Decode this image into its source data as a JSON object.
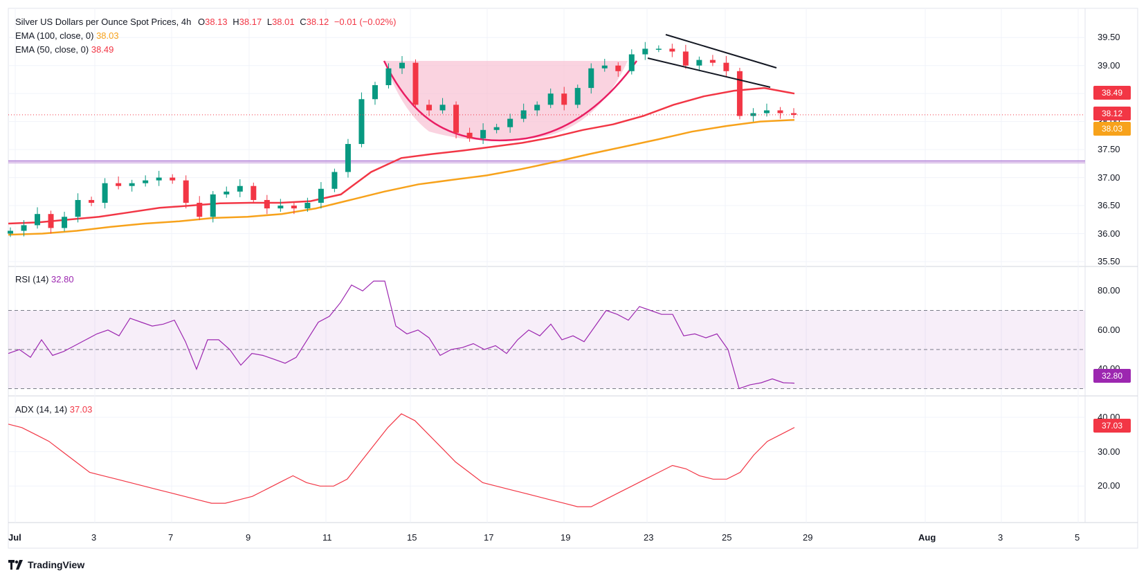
{
  "title": "Silver US Dollars per Ounce Spot Prices",
  "timeframe": "4h",
  "ohlc": {
    "o_label": "O",
    "o": "38.13",
    "h_label": "H",
    "h": "38.17",
    "l_label": "L",
    "l": "38.01",
    "c_label": "C",
    "c": "38.12",
    "change": "−0.01 (−0.02%)"
  },
  "indicators": {
    "ema100": {
      "label": "EMA (100, close, 0)",
      "value": "38.03",
      "color": "#f7a21b"
    },
    "ema50": {
      "label": "EMA (50, close, 0)",
      "value": "38.49",
      "color": "#f23645"
    },
    "rsi": {
      "label": "RSI (14)",
      "value": "32.80",
      "color": "#9c27b0"
    },
    "adx": {
      "label": "ADX (14, 14)",
      "value": "37.03",
      "color": "#f23645"
    }
  },
  "price_tags": {
    "ema50": "38.49",
    "last": "38.12",
    "ema100": "38.03",
    "rsi": "32.80",
    "adx": "37.03"
  },
  "brand": "TradingView",
  "chart_data": [
    {
      "type": "candlestick",
      "title": "Silver US Dollars per Ounce Spot Prices, 4h",
      "ylim": [
        35.5,
        39.75
      ],
      "yticks": [
        "39.50",
        "39.00",
        "38.50",
        "38.00",
        "37.50",
        "37.00",
        "36.50",
        "36.00",
        "35.50"
      ],
      "xticks": [
        "Jul",
        "3",
        "7",
        "9",
        "11",
        "15",
        "17",
        "19",
        "23",
        "25",
        "29",
        "Aug",
        "3",
        "5"
      ],
      "xtick_positions": [
        0,
        2,
        4,
        6,
        8,
        10,
        12,
        14,
        16,
        18,
        20,
        22,
        24,
        26
      ],
      "candles_approx_close": [
        36.05,
        36.15,
        36.35,
        36.1,
        36.3,
        36.6,
        36.55,
        36.9,
        36.85,
        36.9,
        36.95,
        37.0,
        36.95,
        36.55,
        36.3,
        36.7,
        36.75,
        36.85,
        36.6,
        36.45,
        36.5,
        36.45,
        36.55,
        36.8,
        37.1,
        37.6,
        38.4,
        38.65,
        38.95,
        39.05,
        38.3,
        38.2,
        38.3,
        37.8,
        37.7,
        37.85,
        37.9,
        38.05,
        38.2,
        38.3,
        38.5,
        38.3,
        38.6,
        38.95,
        39.0,
        38.9,
        39.2,
        39.3,
        39.3,
        39.25,
        39.0,
        39.1,
        39.05,
        38.9,
        38.1,
        38.15,
        38.2,
        38.15,
        38.12
      ],
      "series": [
        {
          "name": "EMA (50, close, 0)",
          "color": "#f23645",
          "values": [
            36.18,
            36.2,
            36.25,
            36.3,
            36.38,
            36.46,
            36.5,
            36.54,
            36.55,
            36.55,
            36.58,
            36.7,
            37.1,
            37.35,
            37.42,
            37.48,
            37.55,
            37.62,
            37.72,
            37.85,
            37.95,
            38.1,
            38.3,
            38.45,
            38.55,
            38.6,
            38.5
          ]
        },
        {
          "name": "EMA (100, close, 0)",
          "color": "#f7a21b",
          "values": [
            35.98,
            36.0,
            36.05,
            36.12,
            36.18,
            36.22,
            36.28,
            36.3,
            36.35,
            36.45,
            36.6,
            36.75,
            36.88,
            36.96,
            37.04,
            37.15,
            37.28,
            37.42,
            37.55,
            37.68,
            37.82,
            37.92,
            38.0,
            38.03
          ]
        }
      ],
      "horizontal_band": [
        37.25,
        37.3
      ],
      "last_price": 38.12
    },
    {
      "type": "line",
      "title": "RSI (14)",
      "ylim": [
        27,
        90
      ],
      "yticks": [
        "80.00",
        "60.00",
        "40.00"
      ],
      "bands": [
        30,
        50,
        70
      ],
      "series": [
        {
          "name": "RSI (14)",
          "color": "#9c27b0",
          "values": [
            48,
            50,
            46,
            55,
            47,
            49,
            52,
            55,
            58,
            60,
            57,
            66,
            64,
            62,
            63,
            65,
            54,
            40,
            55,
            55,
            50,
            42,
            48,
            47,
            45,
            43,
            46,
            55,
            64,
            67,
            74,
            83,
            80,
            85,
            85,
            62,
            58,
            60,
            56,
            47,
            50,
            51,
            53,
            50,
            52,
            48,
            55,
            60,
            57,
            63,
            55,
            57,
            54,
            62,
            70,
            68,
            65,
            72,
            70,
            68,
            68,
            57,
            58,
            56,
            58,
            50,
            30,
            32,
            33,
            35,
            33,
            32.8
          ]
        }
      ]
    },
    {
      "type": "line",
      "title": "ADX (14, 14)",
      "ylim": [
        10,
        45
      ],
      "yticks": [
        "40.00",
        "30.00",
        "20.00"
      ],
      "series": [
        {
          "name": "ADX (14, 14)",
          "color": "#f23645",
          "values": [
            38,
            37,
            35,
            33,
            30,
            27,
            24,
            23,
            22,
            21,
            20,
            19,
            18,
            17,
            16,
            15,
            15,
            16,
            17,
            19,
            21,
            23,
            21,
            20,
            20,
            22,
            27,
            32,
            37,
            41,
            39,
            35,
            31,
            27,
            24,
            21,
            20,
            19,
            18,
            17,
            16,
            15,
            14,
            14,
            16,
            18,
            20,
            22,
            24,
            26,
            25,
            23,
            22,
            22,
            24,
            29,
            33,
            35,
            37.03
          ]
        }
      ]
    }
  ]
}
